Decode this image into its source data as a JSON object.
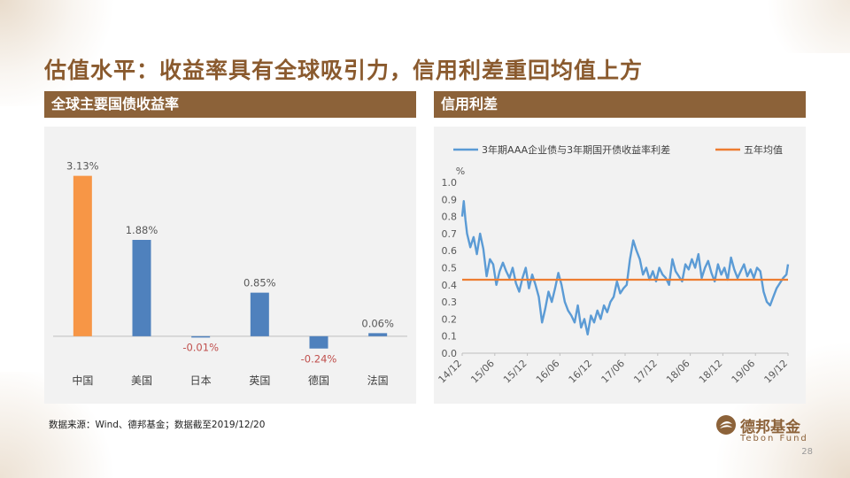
{
  "slide": {
    "title": "估值水平：收益率具有全球吸引力，信用利差重回均值上方",
    "source": "数据来源：Wind、德邦基金；数据截至2019/12/20",
    "page_number": "28",
    "logo": {
      "name_cn": "德邦基金",
      "name_en": "Tebon Fund",
      "color": "#8c6239"
    }
  },
  "left_header": "全球主要国债收益率",
  "right_header": "信用利差",
  "chart_data": [
    {
      "type": "bar",
      "categories": [
        "中国",
        "美国",
        "日本",
        "英国",
        "德国",
        "法国"
      ],
      "values": [
        3.13,
        1.88,
        -0.01,
        0.85,
        -0.24,
        0.06
      ],
      "labels": [
        "3.13%",
        "1.88%",
        "-0.01%",
        "0.85%",
        "-0.24%",
        "0.06%"
      ],
      "colors": [
        "#f79646",
        "#4f81bd",
        "#4f81bd",
        "#4f81bd",
        "#4f81bd",
        "#4f81bd"
      ],
      "positive_label_color": "#595959",
      "negative_label_color": "#c0504d",
      "ylim": [
        -0.4,
        3.4
      ],
      "grid": false
    },
    {
      "type": "line",
      "ylabel": "%",
      "ylim": [
        0.0,
        1.0
      ],
      "yticks": [
        "0.0",
        "0.1",
        "0.2",
        "0.3",
        "0.4",
        "0.5",
        "0.6",
        "0.7",
        "0.8",
        "0.9",
        "1.0"
      ],
      "xticks": [
        "14/12",
        "15/06",
        "15/12",
        "16/06",
        "16/12",
        "17/06",
        "17/12",
        "18/06",
        "18/12",
        "19/06",
        "19/12"
      ],
      "legend_position": "top",
      "series": [
        {
          "name": "3年期AAA企业债与3年期国开债收益率利差",
          "color": "#5b9bd5",
          "x": [
            0,
            0.05,
            0.1,
            0.15,
            0.25,
            0.35,
            0.45,
            0.55,
            0.65,
            0.75,
            0.85,
            0.95,
            1.05,
            1.15,
            1.25,
            1.35,
            1.45,
            1.55,
            1.65,
            1.75,
            1.85,
            1.95,
            2.05,
            2.15,
            2.25,
            2.35,
            2.45,
            2.55,
            2.65,
            2.75,
            2.85,
            2.95,
            3.05,
            3.15,
            3.25,
            3.35,
            3.45,
            3.55,
            3.65,
            3.75,
            3.85,
            3.95,
            4.05,
            4.15,
            4.25,
            4.35,
            4.45,
            4.55,
            4.65,
            4.75,
            4.85,
            4.95,
            5.05,
            5.15,
            5.25,
            5.35,
            5.45,
            5.55,
            5.65,
            5.75,
            5.85,
            5.95,
            6.05,
            6.15,
            6.25,
            6.35,
            6.45,
            6.55,
            6.65,
            6.75,
            6.85,
            6.95,
            7.05,
            7.15,
            7.25,
            7.35,
            7.45,
            7.55,
            7.65,
            7.75,
            7.85,
            7.95,
            8.05,
            8.15,
            8.25,
            8.35,
            8.45,
            8.55,
            8.65,
            8.75,
            8.85,
            8.95,
            9.05,
            9.15,
            9.25,
            9.35,
            9.45,
            9.55,
            9.65,
            9.75,
            9.85,
            9.95,
            10.0
          ],
          "values": [
            0.8,
            0.89,
            0.78,
            0.7,
            0.62,
            0.68,
            0.58,
            0.7,
            0.61,
            0.45,
            0.55,
            0.52,
            0.4,
            0.48,
            0.53,
            0.48,
            0.44,
            0.5,
            0.41,
            0.36,
            0.44,
            0.5,
            0.38,
            0.46,
            0.4,
            0.33,
            0.18,
            0.26,
            0.36,
            0.3,
            0.38,
            0.47,
            0.4,
            0.3,
            0.25,
            0.22,
            0.18,
            0.28,
            0.15,
            0.2,
            0.11,
            0.22,
            0.18,
            0.25,
            0.2,
            0.28,
            0.24,
            0.3,
            0.33,
            0.42,
            0.35,
            0.38,
            0.4,
            0.55,
            0.66,
            0.6,
            0.55,
            0.46,
            0.5,
            0.43,
            0.48,
            0.42,
            0.5,
            0.46,
            0.44,
            0.4,
            0.55,
            0.48,
            0.45,
            0.42,
            0.52,
            0.49,
            0.55,
            0.5,
            0.58,
            0.44,
            0.5,
            0.54,
            0.47,
            0.42,
            0.52,
            0.46,
            0.5,
            0.43,
            0.56,
            0.49,
            0.44,
            0.48,
            0.52,
            0.45,
            0.49,
            0.44,
            0.5,
            0.48,
            0.36,
            0.3,
            0.28,
            0.33,
            0.38,
            0.41,
            0.44,
            0.46,
            0.52
          ]
        },
        {
          "name": "五年均值",
          "color": "#ed7d31",
          "x": [
            0,
            10.0
          ],
          "values": [
            0.43,
            0.43
          ]
        }
      ]
    }
  ]
}
